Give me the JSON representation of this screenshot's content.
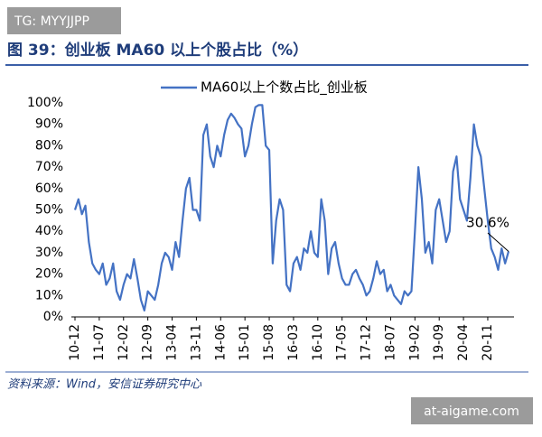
{
  "watermark_top": "TG: MYYJJPP",
  "watermark_bottom": "at-aigame.com",
  "chart_data": {
    "type": "line",
    "title": "图 39：创业板 MA60 以上个股占比（%）",
    "source": "资料来源：Wind，安信证券研究中心",
    "annotation": "30.6%",
    "legend": "top",
    "categories": [
      "10-12",
      null,
      null,
      null,
      null,
      null,
      null,
      "11-07",
      null,
      null,
      null,
      null,
      null,
      null,
      "12-02",
      null,
      null,
      null,
      null,
      null,
      null,
      "12-09",
      null,
      null,
      null,
      null,
      null,
      null,
      "13-04",
      null,
      null,
      null,
      null,
      null,
      null,
      "13-11",
      null,
      null,
      null,
      null,
      null,
      null,
      "14-06",
      null,
      null,
      null,
      null,
      null,
      null,
      "15-01",
      null,
      null,
      null,
      null,
      null,
      null,
      "15-08",
      null,
      null,
      null,
      null,
      null,
      null,
      "16-03",
      null,
      null,
      null,
      null,
      null,
      null,
      "16-10",
      null,
      null,
      null,
      null,
      null,
      null,
      "17-05",
      null,
      null,
      null,
      null,
      null,
      null,
      "17-12",
      null,
      null,
      null,
      null,
      null,
      null,
      "18-07",
      null,
      null,
      null,
      null,
      null,
      null,
      "19-02",
      null,
      null,
      null,
      null,
      null,
      null,
      "19-09",
      null,
      null,
      null,
      null,
      null,
      null,
      "20-04",
      null,
      null,
      null,
      null,
      null,
      null,
      "20-11",
      null,
      null,
      null,
      null,
      null,
      null
    ],
    "series": [
      {
        "name": "MA60以上个数占比_创业板",
        "color": "#4472c4",
        "values": [
          50,
          55,
          48,
          52,
          35,
          25,
          22,
          20,
          25,
          15,
          18,
          25,
          12,
          8,
          15,
          20,
          18,
          27,
          18,
          8,
          3,
          12,
          10,
          8,
          15,
          25,
          30,
          28,
          22,
          35,
          28,
          45,
          60,
          65,
          50,
          50,
          45,
          85,
          90,
          75,
          70,
          80,
          75,
          85,
          92,
          95,
          93,
          90,
          88,
          75,
          80,
          90,
          98,
          99,
          99,
          80,
          78,
          25,
          45,
          55,
          50,
          15,
          12,
          25,
          28,
          22,
          32,
          30,
          40,
          30,
          28,
          55,
          45,
          20,
          32,
          35,
          25,
          18,
          15,
          15,
          20,
          22,
          18,
          15,
          10,
          12,
          18,
          26,
          20,
          22,
          12,
          15,
          10,
          8,
          6,
          12,
          10,
          12,
          40,
          70,
          55,
          30,
          35,
          25,
          50,
          55,
          45,
          35,
          40,
          68,
          75,
          55,
          50,
          45,
          65,
          90,
          80,
          75,
          60,
          45,
          32,
          28,
          22,
          32,
          25,
          30.6
        ]
      }
    ],
    "ylim": [
      0,
      100
    ],
    "yticks": [
      {
        "value": 0,
        "label": "0%"
      },
      {
        "value": 10,
        "label": "10%"
      },
      {
        "value": 20,
        "label": "20%"
      },
      {
        "value": 30,
        "label": "30%"
      },
      {
        "value": 40,
        "label": "40%"
      },
      {
        "value": 50,
        "label": "50%"
      },
      {
        "value": 60,
        "label": "60%"
      },
      {
        "value": 70,
        "label": "70%"
      },
      {
        "value": 80,
        "label": "80%"
      },
      {
        "value": 90,
        "label": "90%"
      },
      {
        "value": 100,
        "label": "100%"
      }
    ],
    "grid": false
  }
}
